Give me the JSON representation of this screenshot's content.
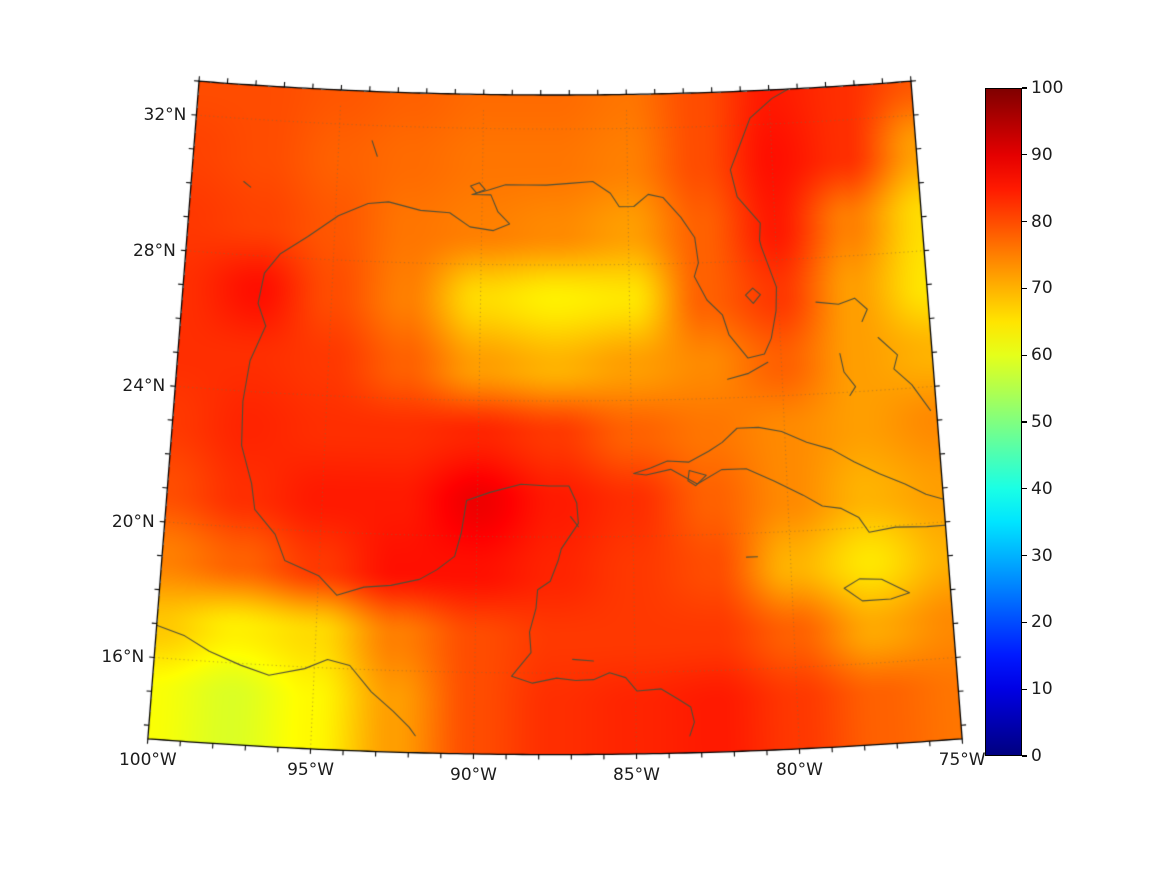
{
  "chart_data": {
    "type": "heatmap",
    "title": "",
    "projection": "conic-lambert-conformal-style",
    "extent": {
      "lon_min": -100,
      "lon_max": -75,
      "lat_min": 13.6,
      "lat_max": 33.0
    },
    "x_tick_labels": [
      {
        "label": "100°W",
        "lon": -100
      },
      {
        "label": "95°W",
        "lon": -95
      },
      {
        "label": "90°W",
        "lon": -90
      },
      {
        "label": "85°W",
        "lon": -85
      },
      {
        "label": "80°W",
        "lon": -80
      },
      {
        "label": "75°W",
        "lon": -75
      }
    ],
    "y_tick_labels": [
      {
        "label": "32°N",
        "lat": 32
      },
      {
        "label": "28°N",
        "lat": 28
      },
      {
        "label": "24°N",
        "lat": 24
      },
      {
        "label": "20°N",
        "lat": 20
      },
      {
        "label": "16°N",
        "lat": 16
      }
    ],
    "graticule": {
      "parallels": [
        16,
        20,
        24,
        28,
        32
      ],
      "meridians": [
        -95,
        -90,
        -85,
        -80
      ]
    },
    "grid_lons": [
      -100,
      -97.5,
      -95,
      -92.5,
      -90,
      -87.5,
      -85,
      -82.5,
      -80,
      -77.5,
      -75
    ],
    "grid_lats": [
      33,
      31,
      29,
      27,
      25,
      23,
      21,
      19,
      17,
      15
    ],
    "values": [
      [
        80,
        80,
        79,
        78,
        77,
        77,
        76,
        80,
        85,
        83,
        79
      ],
      [
        81,
        80,
        78,
        77,
        76,
        76,
        75,
        80,
        86,
        83,
        72
      ],
      [
        82,
        81,
        79,
        76,
        75,
        74,
        72,
        78,
        85,
        75,
        66
      ],
      [
        83,
        86,
        80,
        75,
        66,
        64,
        65,
        78,
        82,
        72,
        65
      ],
      [
        83,
        83,
        82,
        78,
        72,
        70,
        72,
        74,
        78,
        72,
        70
      ],
      [
        82,
        84,
        83,
        83,
        84,
        82,
        78,
        76,
        74,
        72,
        74
      ],
      [
        80,
        83,
        85,
        85,
        89,
        85,
        83,
        78,
        74,
        70,
        72
      ],
      [
        75,
        78,
        82,
        86,
        86,
        84,
        82,
        80,
        70,
        65,
        70
      ],
      [
        68,
        64,
        66,
        75,
        80,
        82,
        82,
        82,
        78,
        71,
        74
      ],
      [
        62,
        59,
        63,
        72,
        80,
        83,
        84,
        85,
        82,
        78,
        76
      ]
    ],
    "colorbar": {
      "min": 0,
      "max": 100,
      "colormap": "jet",
      "tick_labels": [
        "0",
        "10",
        "20",
        "30",
        "40",
        "50",
        "60",
        "70",
        "80",
        "90",
        "100"
      ]
    },
    "coastlines": [
      {
        "name": "us-gulf-atlantic-coast",
        "points": [
          [
            -97.15,
            25.95
          ],
          [
            -97.45,
            26.6
          ],
          [
            -97.3,
            27.5
          ],
          [
            -96.8,
            28.1
          ],
          [
            -95.9,
            28.65
          ],
          [
            -94.9,
            29.3
          ],
          [
            -93.9,
            29.7
          ],
          [
            -93.2,
            29.77
          ],
          [
            -92.1,
            29.55
          ],
          [
            -91.1,
            29.5
          ],
          [
            -90.4,
            29.1
          ],
          [
            -89.6,
            29.0
          ],
          [
            -89.05,
            29.2
          ],
          [
            -89.45,
            29.55
          ],
          [
            -89.7,
            30.05
          ],
          [
            -90.35,
            30.05
          ],
          [
            -89.75,
            30.2
          ],
          [
            -89.2,
            30.35
          ],
          [
            -88.5,
            30.35
          ],
          [
            -87.8,
            30.35
          ],
          [
            -87.0,
            30.4
          ],
          [
            -86.2,
            30.45
          ],
          [
            -85.6,
            30.1
          ],
          [
            -85.3,
            29.7
          ],
          [
            -84.8,
            29.7
          ],
          [
            -84.3,
            30.05
          ],
          [
            -83.8,
            29.95
          ],
          [
            -83.2,
            29.35
          ],
          [
            -82.75,
            28.75
          ],
          [
            -82.65,
            28.0
          ],
          [
            -82.8,
            27.6
          ],
          [
            -82.4,
            26.9
          ],
          [
            -81.9,
            26.45
          ],
          [
            -81.7,
            25.85
          ],
          [
            -81.1,
            25.15
          ],
          [
            -80.55,
            25.25
          ],
          [
            -80.3,
            25.7
          ],
          [
            -80.1,
            26.5
          ],
          [
            -80.05,
            27.2
          ],
          [
            -80.5,
            28.4
          ],
          [
            -80.55,
            28.6
          ],
          [
            -80.5,
            29.1
          ],
          [
            -81.25,
            29.9
          ],
          [
            -81.45,
            30.7
          ],
          [
            -81.1,
            31.4
          ],
          [
            -80.7,
            32.2
          ],
          [
            -79.9,
            32.75
          ],
          [
            -79.2,
            33.05
          ]
        ]
      },
      {
        "name": "mexico-central-america-coast",
        "points": [
          [
            -97.15,
            25.95
          ],
          [
            -97.6,
            24.9
          ],
          [
            -97.75,
            23.7
          ],
          [
            -97.7,
            22.4
          ],
          [
            -97.3,
            21.3
          ],
          [
            -97.15,
            20.55
          ],
          [
            -96.45,
            19.85
          ],
          [
            -96.1,
            19.1
          ],
          [
            -95.0,
            18.7
          ],
          [
            -94.4,
            18.15
          ],
          [
            -93.55,
            18.42
          ],
          [
            -92.7,
            18.5
          ],
          [
            -91.8,
            18.7
          ],
          [
            -91.25,
            19.0
          ],
          [
            -90.7,
            19.4
          ],
          [
            -90.5,
            20.1
          ],
          [
            -90.35,
            21.05
          ],
          [
            -89.6,
            21.3
          ],
          [
            -88.6,
            21.55
          ],
          [
            -87.7,
            21.5
          ],
          [
            -87.05,
            21.5
          ],
          [
            -86.8,
            21.0
          ],
          [
            -86.75,
            20.4
          ],
          [
            -87.3,
            19.65
          ],
          [
            -87.4,
            19.3
          ],
          [
            -87.65,
            18.7
          ],
          [
            -88.05,
            18.45
          ],
          [
            -88.1,
            17.9
          ],
          [
            -88.3,
            17.2
          ],
          [
            -88.25,
            16.6
          ],
          [
            -88.55,
            16.25
          ],
          [
            -88.85,
            15.9
          ],
          [
            -88.2,
            15.7
          ],
          [
            -87.45,
            15.85
          ],
          [
            -86.85,
            15.78
          ],
          [
            -86.3,
            15.8
          ],
          [
            -85.8,
            16.0
          ],
          [
            -85.3,
            15.85
          ],
          [
            -84.95,
            15.45
          ],
          [
            -84.2,
            15.5
          ],
          [
            -83.7,
            15.2
          ],
          [
            -83.3,
            14.95
          ],
          [
            -83.2,
            14.5
          ],
          [
            -83.35,
            14.1
          ]
        ]
      },
      {
        "name": "pacific-coast-mexico",
        "points": [
          [
            -100.0,
            16.95
          ],
          [
            -99.1,
            16.7
          ],
          [
            -98.3,
            16.3
          ],
          [
            -97.3,
            15.95
          ],
          [
            -96.4,
            15.7
          ],
          [
            -95.3,
            15.95
          ],
          [
            -94.6,
            16.25
          ],
          [
            -93.9,
            16.1
          ],
          [
            -93.2,
            15.35
          ],
          [
            -92.5,
            14.8
          ],
          [
            -92.0,
            14.35
          ],
          [
            -91.8,
            14.1
          ]
        ]
      },
      {
        "name": "cuba",
        "points": [
          [
            -84.95,
            21.85
          ],
          [
            -84.4,
            22.0
          ],
          [
            -83.85,
            22.2
          ],
          [
            -83.15,
            22.15
          ],
          [
            -82.5,
            22.45
          ],
          [
            -82.05,
            22.7
          ],
          [
            -81.55,
            23.1
          ],
          [
            -80.85,
            23.1
          ],
          [
            -80.1,
            22.95
          ],
          [
            -79.3,
            22.6
          ],
          [
            -78.5,
            22.35
          ],
          [
            -77.8,
            21.95
          ],
          [
            -77.0,
            21.55
          ],
          [
            -76.2,
            21.2
          ],
          [
            -75.55,
            20.85
          ],
          [
            -74.8,
            20.6
          ],
          [
            -74.15,
            20.2
          ],
          [
            -74.7,
            19.9
          ],
          [
            -75.6,
            19.9
          ],
          [
            -76.6,
            19.95
          ],
          [
            -77.45,
            19.85
          ],
          [
            -77.75,
            20.3
          ],
          [
            -78.3,
            20.6
          ],
          [
            -78.9,
            20.7
          ],
          [
            -79.5,
            21.05
          ],
          [
            -80.4,
            21.5
          ],
          [
            -81.3,
            21.9
          ],
          [
            -82.1,
            21.9
          ],
          [
            -82.9,
            21.5
          ],
          [
            -83.75,
            21.95
          ],
          [
            -84.55,
            21.8
          ],
          [
            -84.95,
            21.85
          ]
        ]
      },
      {
        "name": "isla-de-la-juventud",
        "points": [
          [
            -83.15,
            21.9
          ],
          [
            -82.6,
            21.75
          ],
          [
            -82.95,
            21.45
          ],
          [
            -83.2,
            21.6
          ],
          [
            -83.15,
            21.9
          ]
        ]
      },
      {
        "name": "jamaica",
        "points": [
          [
            -78.35,
            18.25
          ],
          [
            -77.85,
            18.5
          ],
          [
            -77.15,
            18.45
          ],
          [
            -76.3,
            18.0
          ],
          [
            -76.9,
            17.85
          ],
          [
            -77.8,
            17.85
          ],
          [
            -78.35,
            18.25
          ]
        ]
      },
      {
        "name": "bahamas-grand-bahama-abaco",
        "points": [
          [
            -78.75,
            26.7
          ],
          [
            -78.0,
            26.6
          ],
          [
            -77.45,
            26.75
          ],
          [
            -77.05,
            26.4
          ],
          [
            -77.25,
            26.05
          ]
        ]
      },
      {
        "name": "bahamas-andros",
        "points": [
          [
            -78.05,
            25.15
          ],
          [
            -77.95,
            24.6
          ],
          [
            -77.6,
            24.15
          ],
          [
            -77.8,
            23.9
          ]
        ]
      },
      {
        "name": "bahamas-eleuthera-exuma",
        "points": [
          [
            -76.75,
            25.55
          ],
          [
            -76.15,
            25.0
          ],
          [
            -76.3,
            24.6
          ],
          [
            -75.75,
            24.1
          ],
          [
            -75.2,
            23.3
          ]
        ]
      },
      {
        "name": "florida-keys",
        "points": [
          [
            -81.8,
            24.55
          ],
          [
            -81.1,
            24.7
          ],
          [
            -80.45,
            25.0
          ]
        ]
      },
      {
        "name": "lake-okeechobee",
        "points": [
          [
            -81.1,
            27.0
          ],
          [
            -80.85,
            27.2
          ],
          [
            -80.6,
            27.0
          ],
          [
            -80.85,
            26.75
          ],
          [
            -81.1,
            27.0
          ]
        ]
      },
      {
        "name": "cozumel",
        "points": [
          [
            -87.0,
            20.6
          ],
          [
            -86.75,
            20.3
          ]
        ]
      },
      {
        "name": "grand-cayman",
        "points": [
          [
            -81.4,
            19.3
          ],
          [
            -81.05,
            19.3
          ]
        ]
      },
      {
        "name": "roatan",
        "points": [
          [
            -86.95,
            16.4
          ],
          [
            -86.3,
            16.35
          ]
        ]
      },
      {
        "name": "toledo-bend-lake",
        "points": [
          [
            -93.85,
            31.55
          ],
          [
            -93.65,
            31.1
          ]
        ]
      },
      {
        "name": "texas-hill-lakes",
        "points": [
          [
            -98.2,
            30.15
          ],
          [
            -97.95,
            30.0
          ]
        ]
      },
      {
        "name": "lake-pontchartrain",
        "points": [
          [
            -90.4,
            30.3
          ],
          [
            -90.1,
            30.4
          ],
          [
            -89.9,
            30.2
          ],
          [
            -90.2,
            30.1
          ],
          [
            -90.4,
            30.3
          ]
        ]
      }
    ]
  },
  "colors": {
    "background": "#ffffff",
    "boundary": "#000000",
    "coastline": "#4f4f38",
    "graticule": "#8b693c",
    "tick": "#000000",
    "label_text": "#1c1c1c"
  }
}
